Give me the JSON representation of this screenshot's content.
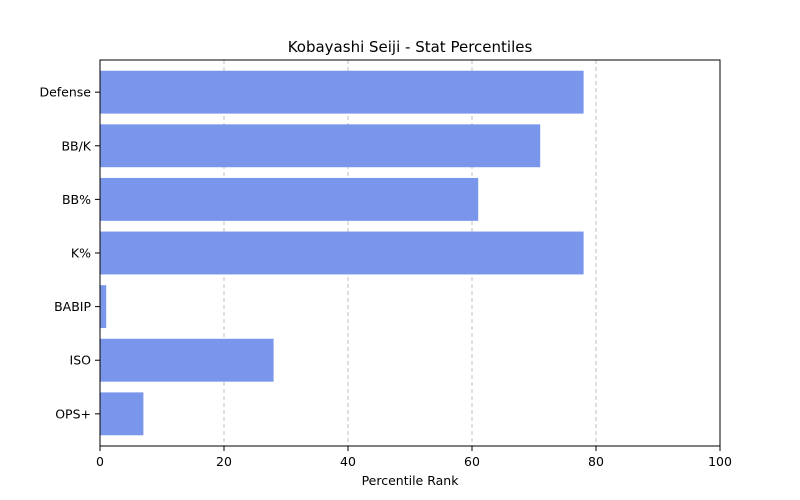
{
  "chart_data": {
    "type": "bar",
    "orientation": "horizontal",
    "title": "Kobayashi Seiji - Stat Percentiles",
    "xlabel": "Percentile Rank",
    "ylabel": "",
    "categories": [
      "Defense",
      "BB/K",
      "BB%",
      "K%",
      "BABIP",
      "ISO",
      "OPS+"
    ],
    "values": [
      78,
      71,
      61,
      78,
      1,
      28,
      7
    ],
    "xlim": [
      0,
      100
    ],
    "xticks": [
      0,
      20,
      40,
      60,
      80,
      100
    ],
    "grid": "x-dashed",
    "bar_color": "#7A96EA"
  }
}
